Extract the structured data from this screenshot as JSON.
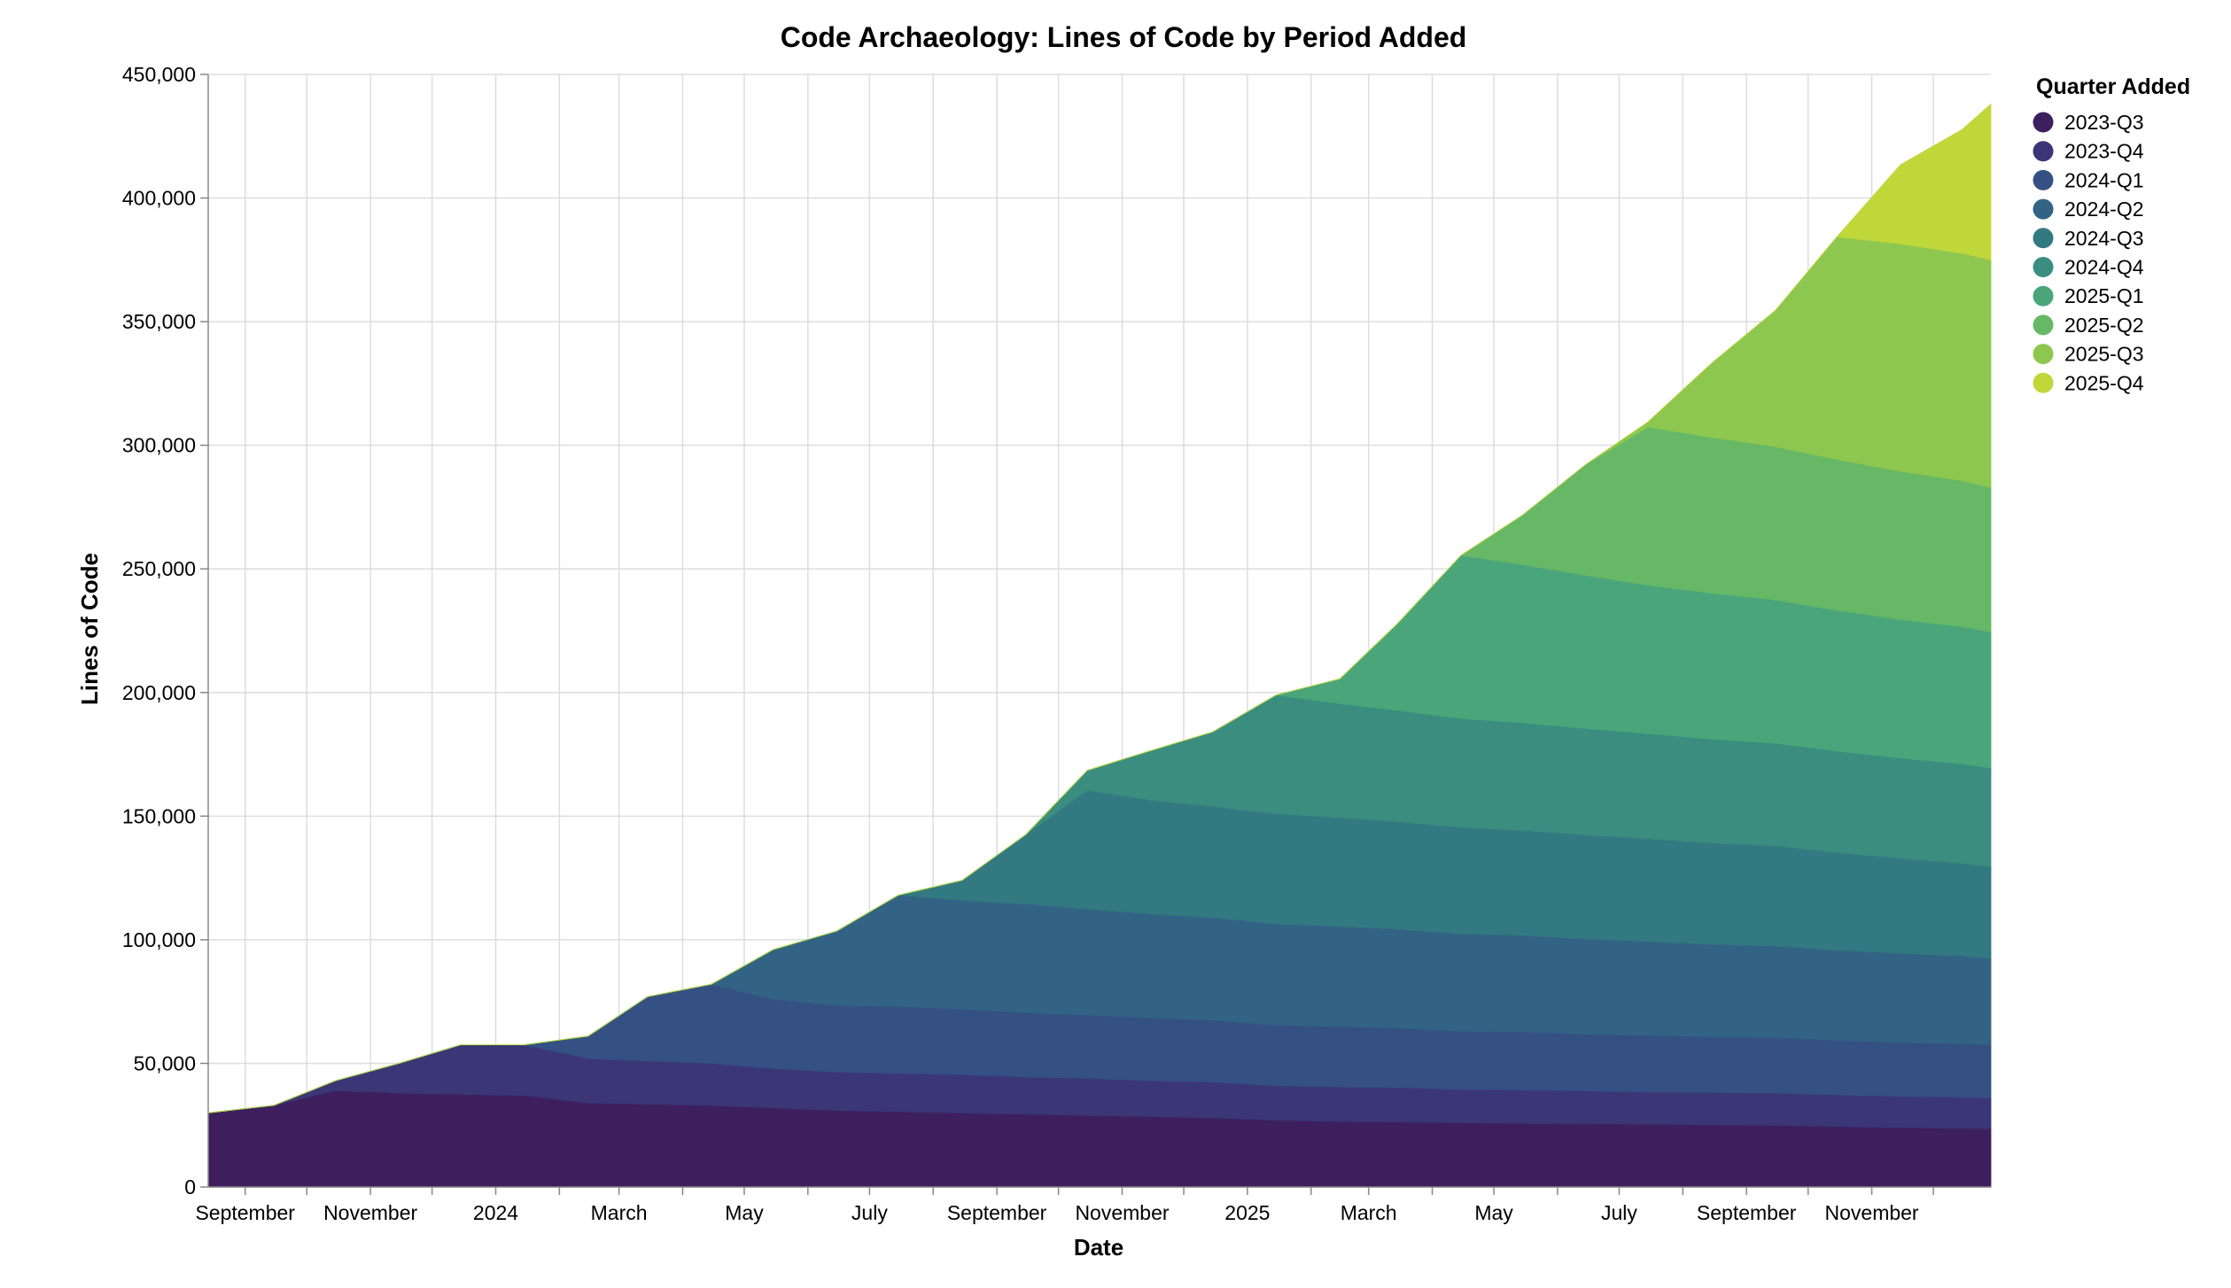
{
  "chart_data": {
    "type": "area",
    "stacked": true,
    "title": "Code Archaeology: Lines of Code by Period Added",
    "xlabel": "Date",
    "ylabel": "Lines of Code",
    "ylim": [
      0,
      450000
    ],
    "y_ticks": [
      0,
      50000,
      100000,
      150000,
      200000,
      250000,
      300000,
      350000,
      400000,
      450000
    ],
    "y_tick_labels": [
      "0",
      "50,000",
      "100,000",
      "150,000",
      "200,000",
      "250,000",
      "300,000",
      "350,000",
      "400,000",
      "450,000"
    ],
    "xlim": [
      "2023-08-14",
      "2025-12-29"
    ],
    "x_ticks": [
      {
        "date": "2023-09-01",
        "label": "September"
      },
      {
        "date": "2023-11-01",
        "label": "November"
      },
      {
        "date": "2024-01-01",
        "label": "2024"
      },
      {
        "date": "2024-03-01",
        "label": "March"
      },
      {
        "date": "2024-05-01",
        "label": "May"
      },
      {
        "date": "2024-07-01",
        "label": "July"
      },
      {
        "date": "2024-09-01",
        "label": "September"
      },
      {
        "date": "2024-11-01",
        "label": "November"
      },
      {
        "date": "2025-01-01",
        "label": "2025"
      },
      {
        "date": "2025-03-01",
        "label": "March"
      },
      {
        "date": "2025-05-01",
        "label": "May"
      },
      {
        "date": "2025-07-01",
        "label": "July"
      },
      {
        "date": "2025-09-01",
        "label": "September"
      },
      {
        "date": "2025-11-01",
        "label": "November"
      }
    ],
    "x_minor_ticks": [
      "2023-10-01",
      "2023-12-01",
      "2024-02-01",
      "2024-04-01",
      "2024-06-01",
      "2024-08-01",
      "2024-10-01",
      "2024-12-01",
      "2025-02-01",
      "2025-04-01",
      "2025-06-01",
      "2025-08-01",
      "2025-10-01",
      "2025-12-01"
    ],
    "grid": true,
    "legend": {
      "title": "Quarter Added",
      "position": "right"
    },
    "x": [
      "2023-08-14",
      "2023-09-15",
      "2023-10-15",
      "2023-11-15",
      "2023-12-15",
      "2024-01-15",
      "2024-02-15",
      "2024-03-15",
      "2024-04-15",
      "2024-05-15",
      "2024-06-15",
      "2024-07-15",
      "2024-08-15",
      "2024-09-15",
      "2024-10-15",
      "2024-11-15",
      "2024-12-15",
      "2025-01-15",
      "2025-02-15",
      "2025-03-15",
      "2025-04-15",
      "2025-05-15",
      "2025-06-15",
      "2025-07-15",
      "2025-08-15",
      "2025-09-15",
      "2025-10-15",
      "2025-11-15",
      "2025-12-15",
      "2025-12-29"
    ],
    "series": [
      {
        "name": "2023-Q3",
        "color": "#3d1f5e",
        "values": [
          30000,
          33000,
          39000,
          38000,
          37500,
          37000,
          34000,
          33500,
          33000,
          32000,
          31000,
          30500,
          30000,
          29500,
          29000,
          28500,
          28000,
          27000,
          26500,
          26300,
          26000,
          25800,
          25600,
          25400,
          25200,
          25000,
          24500,
          24000,
          23800,
          23500
        ]
      },
      {
        "name": "2023-Q4",
        "color": "#3b3675",
        "values": [
          0,
          0,
          4000,
          12000,
          20000,
          20500,
          18000,
          17500,
          17000,
          16000,
          15500,
          15500,
          15500,
          15000,
          15000,
          14500,
          14500,
          14000,
          14000,
          14000,
          13500,
          13500,
          13300,
          13000,
          13000,
          13000,
          12800,
          12700,
          12600,
          12500
        ]
      },
      {
        "name": "2024-Q1",
        "color": "#355082",
        "values": [
          0,
          0,
          0,
          0,
          0,
          0,
          9000,
          26000,
          32000,
          28000,
          27000,
          27000,
          26500,
          26000,
          25500,
          25500,
          25000,
          24500,
          24500,
          24000,
          23500,
          23500,
          23000,
          23000,
          22500,
          22500,
          22000,
          21800,
          21600,
          21500
        ]
      },
      {
        "name": "2024-Q2",
        "color": "#326384",
        "values": [
          0,
          0,
          0,
          0,
          0,
          0,
          0,
          0,
          0,
          20000,
          30000,
          45000,
          44000,
          44000,
          43000,
          42000,
          41500,
          41000,
          40500,
          40000,
          39500,
          39000,
          38500,
          38000,
          37500,
          37000,
          36500,
          36000,
          35500,
          35000
        ]
      },
      {
        "name": "2024-Q3",
        "color": "#337981",
        "values": [
          0,
          0,
          0,
          0,
          0,
          0,
          0,
          0,
          0,
          0,
          0,
          0,
          8000,
          28000,
          48000,
          46000,
          45000,
          44500,
          44000,
          43500,
          43000,
          42500,
          42000,
          41500,
          41000,
          40500,
          39500,
          38500,
          37500,
          37000
        ]
      },
      {
        "name": "2024-Q4",
        "color": "#3a8d7f",
        "values": [
          0,
          0,
          0,
          0,
          0,
          0,
          0,
          0,
          0,
          0,
          0,
          0,
          0,
          0,
          8000,
          20000,
          30000,
          48000,
          46000,
          45000,
          44000,
          43500,
          43000,
          42500,
          42000,
          41500,
          41000,
          40500,
          40200,
          40000
        ]
      },
      {
        "name": "2025-Q1",
        "color": "#4aa57a",
        "values": [
          0,
          0,
          0,
          0,
          0,
          0,
          0,
          0,
          0,
          0,
          0,
          0,
          0,
          0,
          0,
          0,
          0,
          0,
          10000,
          35000,
          66000,
          64000,
          62000,
          60000,
          59000,
          58000,
          57000,
          56000,
          55500,
          55000
        ]
      },
      {
        "name": "2025-Q2",
        "color": "#66b866",
        "values": [
          0,
          0,
          0,
          0,
          0,
          0,
          0,
          0,
          0,
          0,
          0,
          0,
          0,
          0,
          0,
          0,
          0,
          0,
          0,
          0,
          0,
          20000,
          45000,
          64000,
          63000,
          62000,
          61000,
          60000,
          59000,
          58500
        ]
      },
      {
        "name": "2025-Q3",
        "color": "#8ec74f",
        "values": [
          0,
          0,
          0,
          0,
          0,
          0,
          0,
          0,
          0,
          0,
          0,
          0,
          0,
          0,
          0,
          0,
          0,
          0,
          0,
          0,
          0,
          0,
          0,
          2000,
          30000,
          55000,
          90000,
          92000,
          92000,
          92000
        ]
      },
      {
        "name": "2025-Q4",
        "color": "#c0d73a",
        "values": [
          0,
          0,
          0,
          0,
          0,
          0,
          0,
          0,
          0,
          0,
          0,
          0,
          0,
          0,
          0,
          0,
          0,
          0,
          0,
          0,
          0,
          0,
          0,
          0,
          0,
          0,
          0,
          32000,
          50000,
          63000
        ]
      }
    ]
  }
}
